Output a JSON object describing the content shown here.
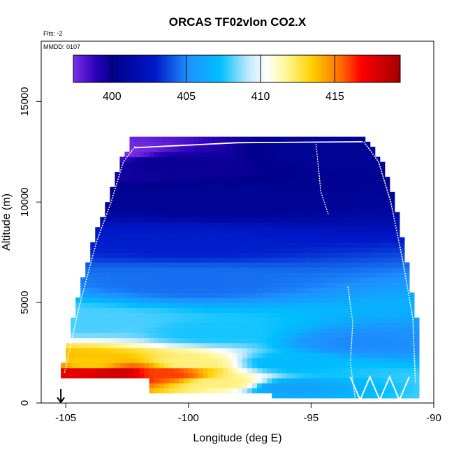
{
  "chart_data": {
    "type": "heatmap",
    "title": "ORCAS TF02vlon CO2.X",
    "flights_label": "Flts: -2",
    "date_label": "MMDD: 0107",
    "xlabel": "Longitude (deg E)",
    "ylabel": "Altitude (m)",
    "xlim": [
      -106,
      -90
    ],
    "ylim": [
      0,
      18000
    ],
    "xticks": [
      -105,
      -100,
      -95,
      -90
    ],
    "yticks": [
      0,
      5000,
      10000,
      15000
    ],
    "colorbar": {
      "range": [
        397.4,
        419.4
      ],
      "ticks": [
        400,
        405,
        410,
        415
      ]
    },
    "grid": false,
    "arrow_marker_lon": -105.2,
    "curtain_edges": {
      "left": [
        [
          -105.2,
          1500
        ],
        [
          -104.6,
          4800
        ],
        [
          -103.9,
          8000
        ],
        [
          -103.3,
          10000
        ],
        [
          -102.8,
          12000
        ],
        [
          -102.3,
          12800
        ]
      ],
      "right": [
        [
          -92.7,
          13000
        ],
        [
          -92.1,
          12000
        ],
        [
          -91.6,
          10000
        ],
        [
          -91.1,
          7000
        ],
        [
          -90.7,
          4200
        ],
        [
          -90.6,
          1000
        ]
      ]
    },
    "profiles": [
      {
        "lon": -105.0,
        "alt": 1500,
        "co2": 417.5
      },
      {
        "lon": -103.0,
        "alt": 1500,
        "co2": 418.0
      },
      {
        "lon": -101.0,
        "alt": 1500,
        "co2": 416.0
      },
      {
        "lon": -98.5,
        "alt": 1000,
        "co2": 412.0
      },
      {
        "lon": -96.0,
        "alt": 800,
        "co2": 406.0
      },
      {
        "lon": -104.0,
        "alt": 2000,
        "co2": 413.5
      },
      {
        "lon": -100.0,
        "alt": 2000,
        "co2": 412.0
      },
      {
        "lon": -96.0,
        "alt": 2000,
        "co2": 407.0
      },
      {
        "lon": -104.0,
        "alt": 4000,
        "co2": 408.0
      },
      {
        "lon": -99.0,
        "alt": 3500,
        "co2": 407.5
      },
      {
        "lon": -93.0,
        "alt": 3000,
        "co2": 405.0
      },
      {
        "lon": -100.0,
        "alt": 6000,
        "co2": 404.5
      },
      {
        "lon": -100.0,
        "alt": 8000,
        "co2": 403.0
      },
      {
        "lon": -99.0,
        "alt": 10000,
        "co2": 400.5
      },
      {
        "lon": -101.0,
        "alt": 12000,
        "co2": 399.8
      },
      {
        "lon": -103.0,
        "alt": 12500,
        "co2": 397.5
      },
      {
        "lon": -94.0,
        "alt": 12500,
        "co2": 400.5
      }
    ]
  }
}
